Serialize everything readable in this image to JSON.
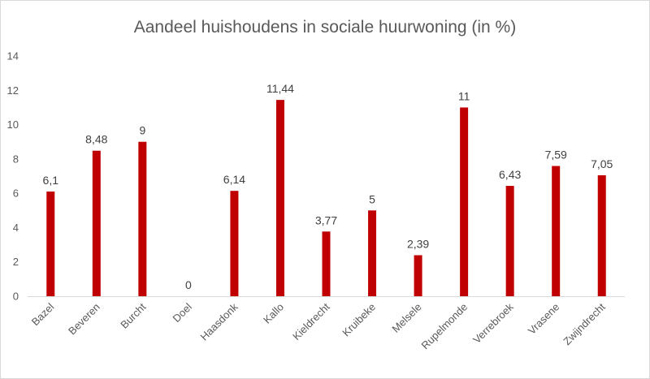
{
  "chart_data": {
    "type": "bar",
    "title": "Aandeel huishoudens in sociale huurwoning (in %)",
    "xlabel": "",
    "ylabel": "",
    "ylim": [
      0,
      14
    ],
    "yticks": [
      "0",
      "2",
      "4",
      "6",
      "8",
      "10",
      "12",
      "14"
    ],
    "grid": false,
    "legend": "none",
    "bar_color": "#c00000",
    "categories": [
      "Bazel",
      "Beveren",
      "Burcht",
      "Doel",
      "Haasdonk",
      "Kallo",
      "Kieldrecht",
      "Kruibeke",
      "Melsele",
      "Rupelmonde",
      "Verrebroek",
      "Vrasene",
      "Zwijndrecht"
    ],
    "values": [
      6.1,
      8.48,
      9,
      0,
      6.14,
      11.44,
      3.77,
      5,
      2.39,
      11,
      6.43,
      7.59,
      7.05
    ],
    "data_labels": [
      "6,1",
      "8,48",
      "9",
      "0",
      "6,14",
      "11,44",
      "3,77",
      "5",
      "2,39",
      "11",
      "6,43",
      "7,59",
      "7,05"
    ]
  }
}
